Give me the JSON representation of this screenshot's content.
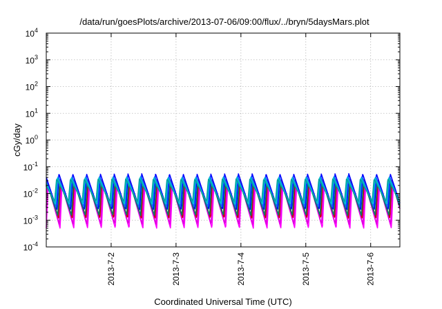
{
  "chart_data": {
    "type": "line",
    "title": "/data/run/goesPlots/archive/2013-07-06/09:00/flux/../bryn/5daysMars.plot",
    "xlabel": "Coordinated Universal Time (UTC)",
    "ylabel": "cGy/day",
    "yscale": "log",
    "ylim": [
      0.0001,
      10000
    ],
    "xlim": [
      0,
      5.45
    ],
    "y_ticks": [
      {
        "base": "10",
        "exp": "-4",
        "value": 0.0001
      },
      {
        "base": "10",
        "exp": "-3",
        "value": 0.001
      },
      {
        "base": "10",
        "exp": "-2",
        "value": 0.01
      },
      {
        "base": "10",
        "exp": "-1",
        "value": 0.1
      },
      {
        "base": "10",
        "exp": "0",
        "value": 1
      },
      {
        "base": "10",
        "exp": "1",
        "value": 10
      },
      {
        "base": "10",
        "exp": "2",
        "value": 100
      },
      {
        "base": "10",
        "exp": "3",
        "value": 1000
      },
      {
        "base": "10",
        "exp": "4",
        "value": 10000
      }
    ],
    "x_ticks": [
      {
        "label": "2013-7-2",
        "value": 1
      },
      {
        "label": "2013-7-3",
        "value": 2
      },
      {
        "label": "2013-7-4",
        "value": 3
      },
      {
        "label": "2013-7-5",
        "value": 4
      },
      {
        "label": "2013-7-6",
        "value": 5
      }
    ],
    "grid": true,
    "cycles_per_day": 4.7,
    "series": [
      {
        "color": "#ff00ff",
        "peak": 0.02,
        "trough": 0.0005
      },
      {
        "color": "#dd00dd",
        "peak": 0.025,
        "trough": 0.0007
      },
      {
        "color": "#cc0000",
        "peak": 0.035,
        "trough": 0.0012
      },
      {
        "color": "#008060",
        "peak": 0.03,
        "trough": 0.0015
      },
      {
        "color": "#0000ff",
        "peak": 0.055,
        "trough": 0.0025
      },
      {
        "color": "#1060ff",
        "peak": 0.045,
        "trough": 0.003
      },
      {
        "color": "#00c0d0",
        "peak": 0.04,
        "trough": 0.004
      },
      {
        "color": "#00a0a0",
        "peak": 0.035,
        "trough": 0.005
      }
    ]
  }
}
